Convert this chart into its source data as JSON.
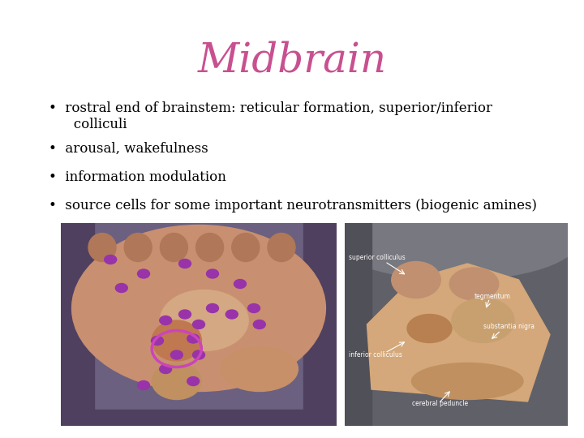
{
  "title": "Midbrain",
  "title_color": "#c85090",
  "title_fontsize": 36,
  "title_fontstyle": "italic",
  "title_fontfamily": "serif",
  "background_color": "#ffffff",
  "bullet_points": [
    "rostral end of brainstem: reticular formation, superior/inferior\n   colliculi",
    "arousal, wakefulness",
    "information modulation",
    "source cells for some important neurotransmitters (biogenic amines)"
  ],
  "bullet_fontsize": 12,
  "bullet_fontfamily": "serif",
  "bullet_color": "#000000",
  "img1_bg": "#7b6b8a",
  "img1_brain_color": "#c89070",
  "img1_brain_inner1": "#d4a882",
  "img1_brain_inner2": "#c07850",
  "img1_brain_inner3": "#d0956a",
  "img1_dot_color": "#9933aa",
  "img1_circle_color": "#cc44bb",
  "img2_bg": "#606070",
  "img2_structure_color": "#d4a87a",
  "img2_structure2_color": "#c09060",
  "img2_label_color": "#ffffff"
}
